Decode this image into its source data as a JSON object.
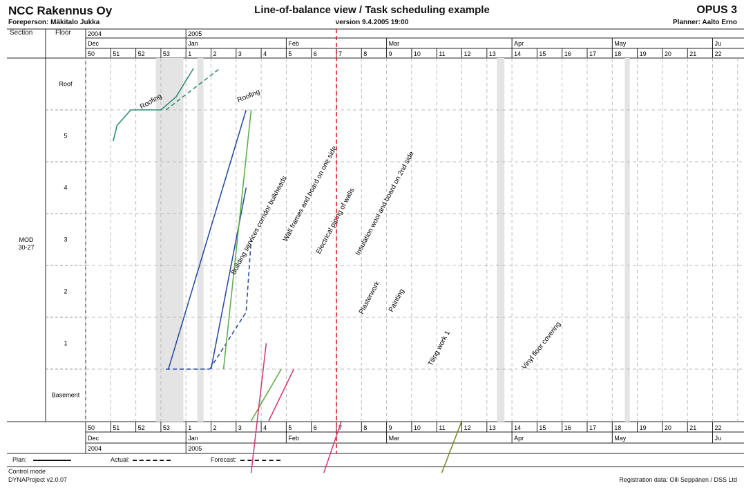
{
  "header": {
    "company": "NCC Rakennus Oy",
    "foreperson": "Foreperson: Mäkitalo Jukka",
    "title": "Line-of-balance view / Task scheduling example",
    "version": "version 9.4.2005 19:00",
    "app_code": "OPUS 3",
    "planner": "Planner: Aalto Erno"
  },
  "columns": {
    "section": "Section",
    "floor": "Floor"
  },
  "chart_data": {
    "type": "line",
    "x_axis": {
      "years": [
        {
          "label": "2004",
          "start_week_index": 0
        },
        {
          "label": "2005",
          "start_week_index": 4
        }
      ],
      "months": [
        {
          "label": "Dec",
          "start": 0
        },
        {
          "label": "Jan",
          "start": 4
        },
        {
          "label": "Feb",
          "start": 8
        },
        {
          "label": "Mar",
          "start": 12
        },
        {
          "label": "Apr",
          "start": 17
        },
        {
          "label": "May",
          "start": 21
        },
        {
          "label": "Ju",
          "start": 25
        }
      ],
      "weeks": [
        "50",
        "51",
        "52",
        "53",
        "1",
        "2",
        "3",
        "4",
        "5",
        "6",
        "7",
        "8",
        "9",
        "10",
        "11",
        "12",
        "13",
        "14",
        "15",
        "16",
        "17",
        "18",
        "19",
        "20",
        "21",
        "22"
      ],
      "today_week": "7"
    },
    "y_axis": {
      "section": "MOD\n30-27",
      "floors": [
        "Basement",
        "1",
        "2",
        "3",
        "4",
        "5",
        "Roof"
      ]
    },
    "legend": {
      "plan": "Plan:",
      "actual": "Actual:",
      "forecast": "Forecast:"
    },
    "series": [
      {
        "name": "Roofing",
        "color": "#2e8b74",
        "style": "plan",
        "points": [
          [
            1.1,
            1.6
          ],
          [
            1.25,
            1.3
          ],
          [
            1.8,
            1.0
          ],
          [
            2.4,
            1.0
          ],
          [
            3.0,
            1.0
          ],
          [
            3.6,
            0.75
          ],
          [
            4.3,
            0.2
          ]
        ]
      },
      {
        "name": "Roofing",
        "color": "#2e8b74",
        "style": "actual",
        "points": [
          [
            3.2,
            1.0
          ],
          [
            5.3,
            0.22
          ]
        ]
      },
      {
        "name": "Building services corridor bulkheads",
        "color": "#2a4fa0",
        "style": "plan",
        "points": [
          [
            3.3,
            6.0
          ],
          [
            6.4,
            1.0
          ]
        ]
      },
      {
        "name": "Building services corridor bulkheads",
        "color": "#2a4fa0",
        "style": "actual",
        "points": [
          [
            3.2,
            6.0
          ],
          [
            4.95,
            6.0
          ]
        ]
      },
      {
        "name": "Wall frames and board on one side",
        "color": "#2a4fa0",
        "style": "plan",
        "points": [
          [
            5.0,
            6.0
          ],
          [
            6.4,
            2.5
          ]
        ]
      },
      {
        "name": "Wall frames and board on one side",
        "color": "#2a4fa0",
        "style": "actual",
        "points": [
          [
            4.95,
            6.0
          ],
          [
            6.4,
            4.9
          ],
          [
            6.6,
            3.5
          ]
        ]
      },
      {
        "name": "Electrical piping of walls",
        "color": "#5fae4a",
        "style": "plan",
        "points": [
          [
            5.5,
            6.0
          ],
          [
            6.6,
            1.0
          ]
        ]
      },
      {
        "name": "Insulation wool and board on 2nd side",
        "color": "#5fae4a",
        "style": "plan",
        "points": [
          [
            6.6,
            7.0
          ],
          [
            7.8,
            6.0
          ]
        ]
      },
      {
        "name": "Plasterwork",
        "color": "#d23f7a",
        "style": "plan",
        "points": [
          [
            6.6,
            8.0
          ],
          [
            7.2,
            5.5
          ]
        ]
      },
      {
        "name": "Painting",
        "color": "#d23f7a",
        "style": "plan",
        "points": [
          [
            7.3,
            7.0
          ],
          [
            8.3,
            6.0
          ]
        ]
      },
      {
        "name": "Tiling work 1",
        "color": "#d23f7a",
        "style": "plan",
        "points": [
          [
            9.5,
            8.0
          ],
          [
            10.2,
            7.0
          ]
        ]
      },
      {
        "name": "Vinyl floor covering",
        "color": "#7a8b2a",
        "style": "plan",
        "points": [
          [
            14.2,
            8.0
          ],
          [
            15.0,
            7.0
          ]
        ]
      }
    ],
    "labels": [
      "Roofing",
      "Roofing",
      "Building services corridor bulkheads",
      "Wall frames and board on one side",
      "Electrical piping of walls",
      "Insulation wool and board on 2nd side",
      "Plasterwork",
      "Painting",
      "Tiling work 1",
      "Vinyl floor covering"
    ]
  },
  "footer": {
    "control_mode": "Control mode",
    "version": "DYNAProject v2.0.07",
    "registration": "Registration data: Olli Seppänen / DSS Ltd"
  }
}
